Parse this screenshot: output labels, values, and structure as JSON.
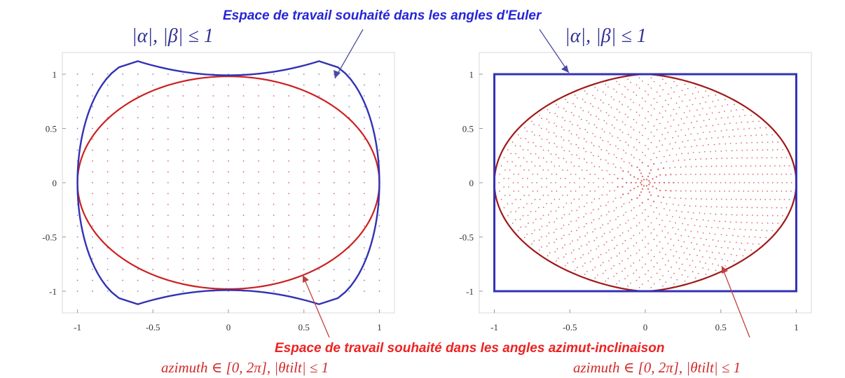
{
  "colors": {
    "blue": "#3232b4",
    "red": "#cc2020",
    "darkred": "#a01818",
    "grid_blue": "#7a80c8",
    "grid_red": "#e06060",
    "annot_blue": "#2525d8",
    "annot_red": "#ee2222"
  },
  "annotations": {
    "euler_title": "Espace de travail souhaité dans les angles d'Euler",
    "azimuth_title": "Espace de travail souhaité dans les angles azimut-inclinaison"
  },
  "chart_data": [
    {
      "type": "scatter",
      "id": "left",
      "title": "|α|, |β| ≤ 1",
      "subtitle": "azimuth ∈ [0, 2π], |θtilt| ≤ 1",
      "xlim": [
        -1.1,
        1.1
      ],
      "ylim": [
        -1.2,
        1.2
      ],
      "xticks": [
        -1,
        -0.5,
        0,
        0.5,
        1
      ],
      "yticks": [
        1,
        0.5,
        0,
        -0.5,
        -1
      ],
      "xtick_labels": [
        "-1",
        "-0.5",
        "0",
        "0.5",
        "1"
      ],
      "ytick_labels": [
        "1",
        "0.5",
        "0",
        "-0.5",
        "-1"
      ],
      "outline_blue": {
        "corner": 0.6,
        "y_corner": 1.12,
        "y_mid": 0.99
      },
      "ellipse_red": {
        "rx": 1.0,
        "ry": 0.98
      },
      "grid_points": {
        "spacing": 0.1,
        "range": [
          -1,
          1
        ]
      }
    },
    {
      "type": "scatter",
      "id": "right",
      "title": "|α|, |β| ≤ 1",
      "subtitle": "azimuth ∈ [0, 2π], |θtilt| ≤ 1",
      "xlim": [
        -1.1,
        1.1
      ],
      "ylim": [
        -1.2,
        1.2
      ],
      "xticks": [
        -1,
        -0.5,
        0,
        0.5,
        1
      ],
      "yticks": [
        1,
        0.5,
        0,
        -0.5,
        -1
      ],
      "xtick_labels": [
        "-1",
        "-0.5",
        "0",
        "0.5",
        "1"
      ],
      "ytick_labels": [
        "1",
        "0.5",
        "0",
        "-0.5",
        "-1"
      ],
      "square_blue": {
        "half": 1.0
      },
      "lens_red": {
        "half_width": 1.0,
        "half_height": 1.0
      },
      "rings": {
        "count": 32,
        "points_per_ring": 80
      }
    }
  ]
}
